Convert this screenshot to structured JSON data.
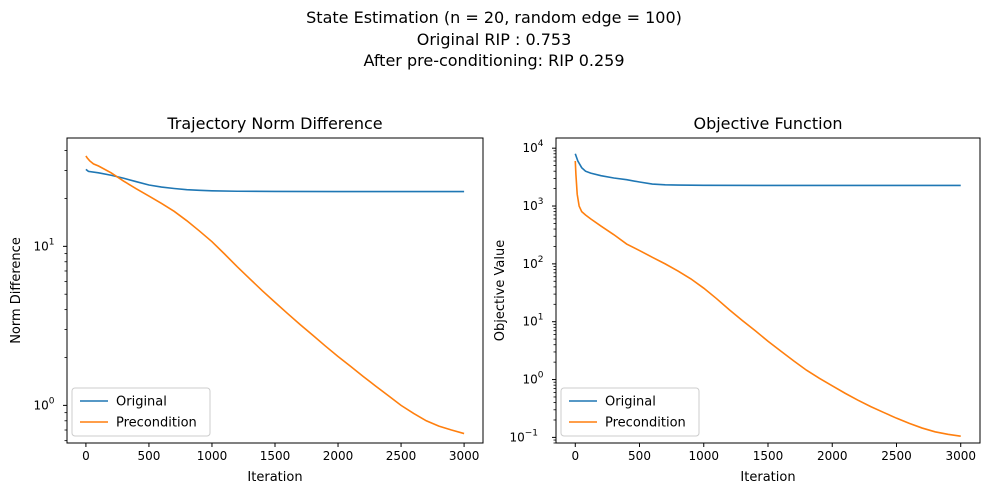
{
  "figure": {
    "suptitle_lines": [
      "State Estimation (n = 20, random edge = 100)",
      "Original RIP : 0.753",
      "After pre-conditioning: RIP 0.259"
    ]
  },
  "colors": {
    "original": "#1f77b4",
    "precondition": "#ff7f0e"
  },
  "chart_data": [
    {
      "type": "line",
      "title": "Trajectory Norm Difference",
      "xlabel": "Iteration",
      "ylabel": "Norm Difference",
      "yscale": "log",
      "xlim": [
        -150,
        3150
      ],
      "ylim": [
        0.58,
        48
      ],
      "xticks": [
        0,
        500,
        1000,
        1500,
        2000,
        2500,
        3000
      ],
      "yticks": [
        {
          "value": 1,
          "label": "10",
          "exp": "0"
        },
        {
          "value": 10,
          "label": "10",
          "exp": "1"
        }
      ],
      "legend": {
        "position": "lower-left",
        "entries": [
          "Original",
          "Precondition"
        ]
      },
      "series": [
        {
          "name": "Original",
          "x": [
            0,
            20,
            100,
            200,
            300,
            400,
            500,
            600,
            700,
            800,
            900,
            1000,
            1200,
            1500,
            2000,
            2500,
            3000
          ],
          "y": [
            30.5,
            29.6,
            29.0,
            28.0,
            26.8,
            25.5,
            24.3,
            23.6,
            23.1,
            22.7,
            22.5,
            22.35,
            22.2,
            22.15,
            22.1,
            22.1,
            22.1
          ]
        },
        {
          "name": "Precondition",
          "x": [
            0,
            10,
            30,
            60,
            100,
            200,
            300,
            400,
            500,
            600,
            700,
            800,
            900,
            1000,
            1100,
            1200,
            1300,
            1400,
            1500,
            1600,
            1700,
            1800,
            1900,
            2000,
            2100,
            2200,
            2300,
            2400,
            2500,
            2600,
            2700,
            2800,
            2900,
            3000
          ],
          "y": [
            37.0,
            36.0,
            34.5,
            33.0,
            32.0,
            29.0,
            25.7,
            23.0,
            20.7,
            18.6,
            16.6,
            14.5,
            12.5,
            10.7,
            8.95,
            7.45,
            6.25,
            5.25,
            4.45,
            3.78,
            3.22,
            2.76,
            2.36,
            2.03,
            1.76,
            1.52,
            1.32,
            1.15,
            1.0,
            0.89,
            0.8,
            0.74,
            0.7,
            0.665
          ]
        }
      ]
    },
    {
      "type": "line",
      "title": "Objective Function",
      "xlabel": "Iteration",
      "ylabel": "Objective Value",
      "yscale": "log",
      "xlim": [
        -150,
        3150
      ],
      "ylim": [
        0.08,
        15000
      ],
      "xticks": [
        0,
        500,
        1000,
        1500,
        2000,
        2500,
        3000
      ],
      "yticks": [
        {
          "value": 0.1,
          "label": "10",
          "exp": "−1"
        },
        {
          "value": 1,
          "label": "10",
          "exp": "0"
        },
        {
          "value": 10,
          "label": "10",
          "exp": "1"
        },
        {
          "value": 100,
          "label": "10",
          "exp": "2"
        },
        {
          "value": 1000,
          "label": "10",
          "exp": "3"
        },
        {
          "value": 10000,
          "label": "10",
          "exp": "4"
        }
      ],
      "legend": {
        "position": "lower-left",
        "entries": [
          "Original",
          "Precondition"
        ]
      },
      "series": [
        {
          "name": "Original",
          "x": [
            0,
            20,
            50,
            80,
            120,
            200,
            300,
            400,
            500,
            600,
            700,
            800,
            1000,
            1500,
            2000,
            2500,
            3000
          ],
          "y": [
            8000,
            6000,
            4600,
            4000,
            3700,
            3350,
            3050,
            2850,
            2600,
            2400,
            2330,
            2300,
            2280,
            2270,
            2270,
            2270,
            2270
          ]
        },
        {
          "name": "Precondition",
          "x": [
            0,
            5,
            15,
            30,
            50,
            80,
            120,
            200,
            300,
            400,
            500,
            600,
            700,
            800,
            900,
            1000,
            1100,
            1200,
            1300,
            1400,
            1500,
            1600,
            1700,
            1800,
            1900,
            2000,
            2100,
            2200,
            2300,
            2400,
            2500,
            2600,
            2700,
            2800,
            2900,
            3000
          ],
          "y": [
            6000,
            3500,
            1600,
            1000,
            800,
            700,
            600,
            450,
            320,
            220,
            170,
            130,
            100,
            75,
            55,
            38,
            25,
            16,
            10.5,
            7,
            4.6,
            3.1,
            2.1,
            1.45,
            1.05,
            0.78,
            0.58,
            0.44,
            0.34,
            0.27,
            0.215,
            0.175,
            0.145,
            0.125,
            0.113,
            0.105
          ]
        }
      ]
    }
  ]
}
